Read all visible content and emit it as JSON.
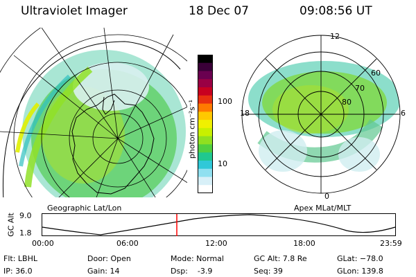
{
  "header": {
    "instrument": "Ultraviolet Imager",
    "date": "18 Dec 07",
    "time": "09:08:56 UT"
  },
  "colorbar": {
    "unit_label": "photon cm⁻²s⁻¹",
    "ticks": [
      "100",
      "10"
    ],
    "colors": [
      "#000000",
      "#3a0038",
      "#6a0050",
      "#9a0044",
      "#c80020",
      "#e83010",
      "#ff7a00",
      "#ffc800",
      "#f0f000",
      "#c8f000",
      "#90e020",
      "#50d040",
      "#20c890",
      "#30c8d8",
      "#90e0f0",
      "#d8f0f8",
      "#ffffff"
    ]
  },
  "geo_panel": {
    "title": "Geographic Lat/Lon"
  },
  "mag_panel": {
    "title": "Apex MLat/MLT",
    "mlt_labels": {
      "top": "12",
      "left": "18",
      "right": "6",
      "bottom": "0"
    },
    "lat_labels": [
      "60",
      "70",
      "80"
    ]
  },
  "altitude_plot": {
    "ylabel": "GC Alt",
    "yticks": [
      "9.0",
      "1.8"
    ],
    "xticks": [
      "00:00",
      "06:00",
      "12:00",
      "18:00",
      "23:59"
    ],
    "marker_color": "#ff0000"
  },
  "info": {
    "filter": "Flt: LBHL",
    "ip": "IP: 36.0",
    "door": "Door: Open",
    "gain": "Gain: 14",
    "mode": "Mode: Normal",
    "dsp": "Dsp:    -3.9",
    "gc_alt": "GC Alt: 7.8 Re",
    "seq": "Seq: 39",
    "glat": "GLat: −78.0",
    "glon": "GLon: 139.8"
  }
}
